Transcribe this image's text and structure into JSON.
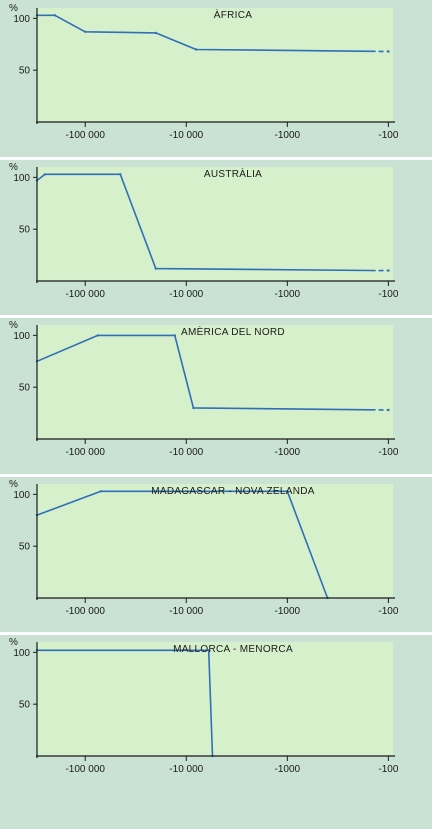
{
  "colors": {
    "background": "#c9e2d3",
    "plot_fill": "#d7f0cc",
    "line": "#2f6fb8",
    "axis": "#1a1a1a"
  },
  "chart_data": [
    {
      "type": "area",
      "title": "ÀFRICA",
      "ylabel": "%",
      "x_scale": "log",
      "x_direction": "reversed",
      "xlim": [
        -300000,
        -90
      ],
      "ylim": [
        0,
        110
      ],
      "xticks": [
        -100000,
        -10000,
        -1000,
        -100
      ],
      "xtick_labels": [
        "-100 000",
        "-10 000",
        "-1000",
        "-100"
      ],
      "yticks": [
        50,
        100
      ],
      "ytick_labels": [
        "50",
        "100"
      ],
      "points": [
        [
          -300000,
          103
        ],
        [
          -200000,
          103
        ],
        [
          -100000,
          87
        ],
        [
          -20000,
          86
        ],
        [
          -8000,
          70
        ],
        [
          -100,
          68
        ]
      ],
      "dashed_from": -150
    },
    {
      "type": "area",
      "title": "AUSTRÀLIA",
      "ylabel": "%",
      "x_scale": "log",
      "x_direction": "reversed",
      "xlim": [
        -300000,
        -90
      ],
      "ylim": [
        0,
        110
      ],
      "xticks": [
        -100000,
        -10000,
        -1000,
        -100
      ],
      "xtick_labels": [
        "-100 000",
        "-10 000",
        "-1000",
        "-100"
      ],
      "yticks": [
        50,
        100
      ],
      "ytick_labels": [
        "50",
        "100"
      ],
      "points": [
        [
          -300000,
          97
        ],
        [
          -250000,
          103
        ],
        [
          -45000,
          103
        ],
        [
          -20000,
          12
        ],
        [
          -100,
          10
        ]
      ],
      "dashed_from": -150
    },
    {
      "type": "area",
      "title": "AMÈRICA DEL NORD",
      "ylabel": "%",
      "x_scale": "log",
      "x_direction": "reversed",
      "xlim": [
        -300000,
        -90
      ],
      "ylim": [
        0,
        110
      ],
      "xticks": [
        -100000,
        -10000,
        -1000,
        -100
      ],
      "xtick_labels": [
        "-100 000",
        "-10 000",
        "-1000",
        "-100"
      ],
      "yticks": [
        50,
        100
      ],
      "ytick_labels": [
        "50",
        "100"
      ],
      "points": [
        [
          -300000,
          75
        ],
        [
          -75000,
          100
        ],
        [
          -13000,
          100
        ],
        [
          -8500,
          30
        ],
        [
          -100,
          28
        ]
      ],
      "dashed_from": -150
    },
    {
      "type": "area",
      "title": "MADAGASCAR - NOVA ZELANDA",
      "ylabel": "%",
      "x_scale": "log",
      "x_direction": "reversed",
      "xlim": [
        -300000,
        -90
      ],
      "ylim": [
        0,
        110
      ],
      "xticks": [
        -100000,
        -10000,
        -1000,
        -100
      ],
      "xtick_labels": [
        "-100 000",
        "-10 000",
        "-1000",
        "-100"
      ],
      "yticks": [
        50,
        100
      ],
      "ytick_labels": [
        "50",
        "100"
      ],
      "points": [
        [
          -300000,
          80
        ],
        [
          -70000,
          103
        ],
        [
          -1000,
          103
        ],
        [
          -400,
          0
        ]
      ]
    },
    {
      "type": "area",
      "title": "MALLORCA - MENORCA",
      "ylabel": "%",
      "x_scale": "log",
      "x_direction": "reversed",
      "xlim": [
        -300000,
        -90
      ],
      "ylim": [
        0,
        110
      ],
      "xticks": [
        -100000,
        -10000,
        -1000,
        -100
      ],
      "xtick_labels": [
        "-100 000",
        "-10 000",
        "-1000",
        "-100"
      ],
      "yticks": [
        50,
        100
      ],
      "ytick_labels": [
        "50",
        "100"
      ],
      "points": [
        [
          -300000,
          102
        ],
        [
          -6000,
          102
        ],
        [
          -5500,
          0
        ]
      ]
    }
  ]
}
